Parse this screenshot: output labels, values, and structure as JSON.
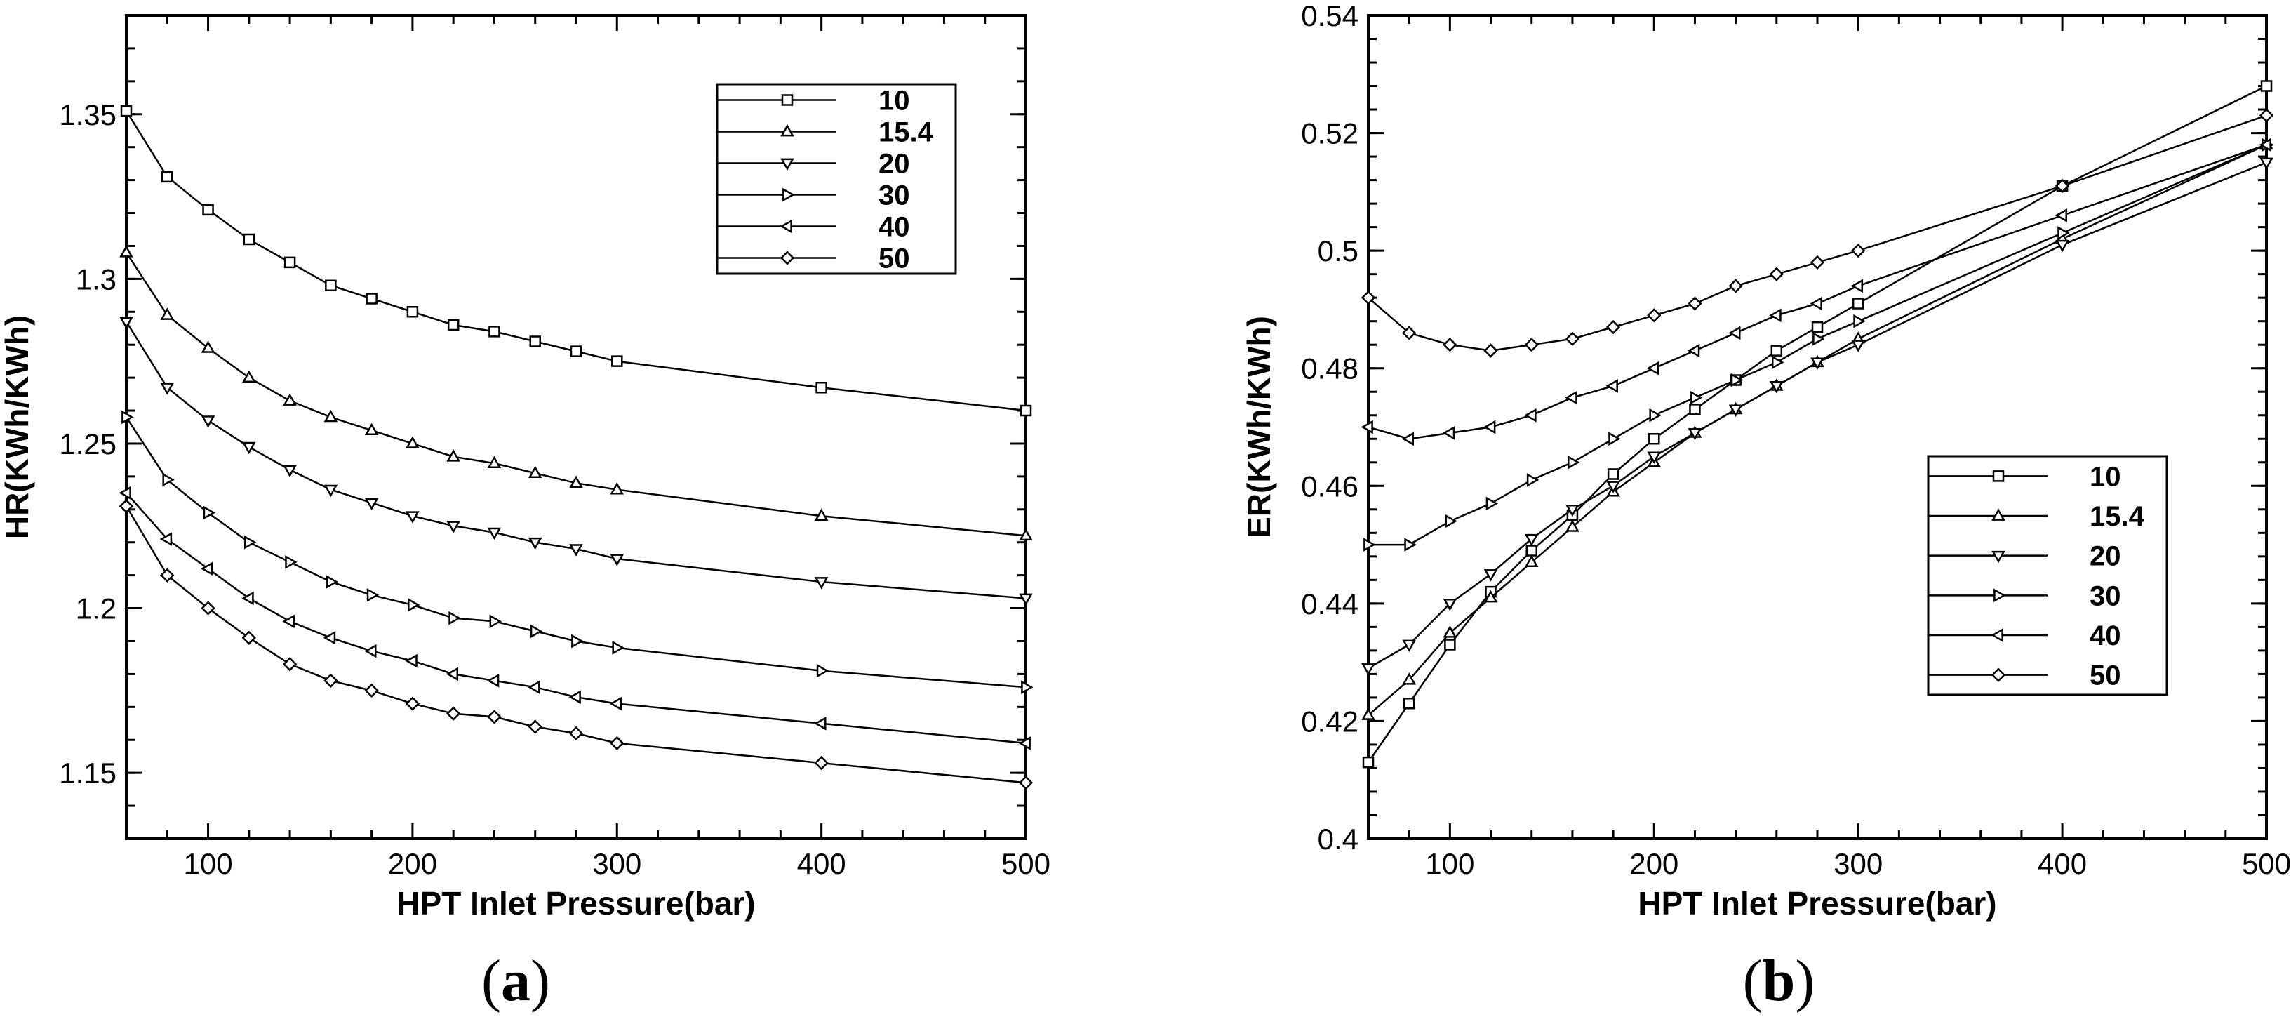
{
  "chart_data": [
    {
      "type": "line",
      "panel_label": "a",
      "xlabel": "HPT Inlet Pressure(bar)",
      "ylabel": "HR(KWh/KWh)",
      "xlim": [
        60,
        500
      ],
      "ylim": [
        1.13,
        1.38
      ],
      "xticks": [
        100,
        200,
        300,
        400,
        500
      ],
      "yticks": [
        1.15,
        1.2,
        1.25,
        1.3,
        1.35
      ],
      "ytick_labels": [
        "1.15",
        "1.2",
        "1.25",
        "1.3",
        "1.35"
      ],
      "legend_position": "top-right",
      "x": [
        60,
        80,
        100,
        120,
        140,
        160,
        180,
        200,
        220,
        240,
        260,
        280,
        300,
        400,
        500
      ],
      "series": [
        {
          "name": "10",
          "marker": "square",
          "values": [
            1.351,
            1.331,
            1.321,
            1.312,
            1.305,
            1.298,
            1.294,
            1.29,
            1.286,
            1.284,
            1.281,
            1.278,
            1.275,
            1.267,
            1.26
          ]
        },
        {
          "name": "15.4",
          "marker": "triangle-up",
          "values": [
            1.308,
            1.289,
            1.279,
            1.27,
            1.263,
            1.258,
            1.254,
            1.25,
            1.246,
            1.244,
            1.241,
            1.238,
            1.236,
            1.228,
            1.222
          ]
        },
        {
          "name": "20",
          "marker": "triangle-down",
          "values": [
            1.287,
            1.267,
            1.257,
            1.249,
            1.242,
            1.236,
            1.232,
            1.228,
            1.225,
            1.223,
            1.22,
            1.218,
            1.215,
            1.208,
            1.203
          ]
        },
        {
          "name": "30",
          "marker": "triangle-right",
          "values": [
            1.258,
            1.239,
            1.229,
            1.22,
            1.214,
            1.208,
            1.204,
            1.201,
            1.197,
            1.196,
            1.193,
            1.19,
            1.188,
            1.181,
            1.176
          ]
        },
        {
          "name": "40",
          "marker": "triangle-left",
          "values": [
            1.235,
            1.221,
            1.212,
            1.203,
            1.196,
            1.191,
            1.187,
            1.184,
            1.18,
            1.178,
            1.176,
            1.173,
            1.171,
            1.165,
            1.159
          ]
        },
        {
          "name": "50",
          "marker": "diamond",
          "values": [
            1.231,
            1.21,
            1.2,
            1.191,
            1.183,
            1.178,
            1.175,
            1.171,
            1.168,
            1.167,
            1.164,
            1.162,
            1.159,
            1.153,
            1.147
          ]
        }
      ]
    },
    {
      "type": "line",
      "panel_label": "b",
      "xlabel": "HPT Inlet Pressure(bar)",
      "ylabel": "ER(KWh/KWh)",
      "xlim": [
        60,
        500
      ],
      "ylim": [
        0.4,
        0.54
      ],
      "xticks": [
        100,
        200,
        300,
        400,
        500
      ],
      "yticks": [
        0.4,
        0.42,
        0.44,
        0.46,
        0.48,
        0.5,
        0.52,
        0.54
      ],
      "ytick_labels": [
        "0.4",
        "0.42",
        "0.44",
        "0.46",
        "0.48",
        "0.5",
        "0.52",
        "0.54"
      ],
      "legend_position": "center-right",
      "x": [
        60,
        80,
        100,
        120,
        140,
        160,
        180,
        200,
        220,
        240,
        260,
        280,
        300,
        400,
        500
      ],
      "series": [
        {
          "name": "10",
          "marker": "square",
          "values": [
            0.413,
            0.423,
            0.433,
            0.442,
            0.449,
            0.455,
            0.462,
            0.468,
            0.473,
            0.478,
            0.483,
            0.487,
            0.491,
            0.511,
            0.528
          ]
        },
        {
          "name": "15.4",
          "marker": "triangle-up",
          "values": [
            0.421,
            0.427,
            0.435,
            0.441,
            0.447,
            0.453,
            0.459,
            0.464,
            0.469,
            0.473,
            0.477,
            0.481,
            0.485,
            0.502,
            0.518
          ]
        },
        {
          "name": "20",
          "marker": "triangle-down",
          "values": [
            0.429,
            0.433,
            0.44,
            0.445,
            0.451,
            0.456,
            0.46,
            0.465,
            0.469,
            0.473,
            0.477,
            0.481,
            0.484,
            0.501,
            0.515
          ]
        },
        {
          "name": "30",
          "marker": "triangle-right",
          "values": [
            0.45,
            0.45,
            0.454,
            0.457,
            0.461,
            0.464,
            0.468,
            0.472,
            0.475,
            0.478,
            0.481,
            0.485,
            0.488,
            0.503,
            0.518
          ]
        },
        {
          "name": "40",
          "marker": "triangle-left",
          "values": [
            0.47,
            0.468,
            0.469,
            0.47,
            0.472,
            0.475,
            0.477,
            0.48,
            0.483,
            0.486,
            0.489,
            0.491,
            0.494,
            0.506,
            0.518
          ]
        },
        {
          "name": "50",
          "marker": "diamond",
          "values": [
            0.492,
            0.486,
            0.484,
            0.483,
            0.484,
            0.485,
            0.487,
            0.489,
            0.491,
            0.494,
            0.496,
            0.498,
            0.5,
            0.511,
            0.523
          ]
        }
      ]
    }
  ]
}
